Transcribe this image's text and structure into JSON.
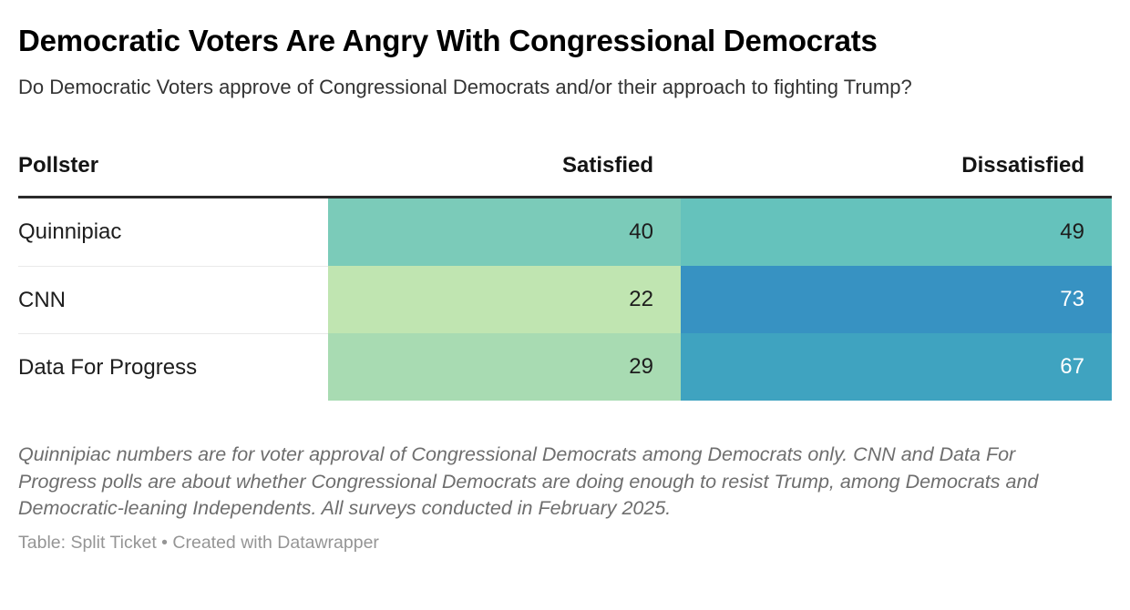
{
  "header": {
    "title": "Democratic Voters Are Angry With Congressional Democrats",
    "subtitle": "Do Democratic Voters approve of Congressional Democrats and/or their approach to fighting Trump?"
  },
  "table": {
    "columns": [
      "Pollster",
      "Satisfied",
      "Dissatisfied"
    ],
    "rows": [
      {
        "label": "Quinnipiac",
        "cells": [
          {
            "value": "40",
            "bg": "#7bcbb9",
            "fg": "#1d1d1d"
          },
          {
            "value": "49",
            "bg": "#65c2bc",
            "fg": "#1d1d1d"
          }
        ]
      },
      {
        "label": "CNN",
        "cells": [
          {
            "value": "22",
            "bg": "#c0e5b1",
            "fg": "#1d1d1d"
          },
          {
            "value": "73",
            "bg": "#3792c2",
            "fg": "#ffffff"
          }
        ]
      },
      {
        "label": "Data For Progress",
        "cells": [
          {
            "value": "29",
            "bg": "#a8dbb2",
            "fg": "#1d1d1d"
          },
          {
            "value": "67",
            "bg": "#3fa3c0",
            "fg": "#ffffff"
          }
        ]
      }
    ]
  },
  "footer": {
    "footnote": "Quinnipiac numbers are for voter approval of Congressional Democrats among Democrats only. CNN and Data For Progress polls are about whether Congressional Democrats are doing enough to resist Trump, among Democrats and Democratic-leaning Independents. All surveys conducted in February 2025.",
    "credit": "Table: Split Ticket • Created with Datawrapper"
  },
  "colors": {
    "header_rule": "#2b2b2b",
    "row_divider": "#e9e9e9",
    "title_text": "#000000",
    "subtitle_text": "#333333",
    "footnote_text": "#6e6e6e",
    "credit_text": "#959595"
  },
  "chart_data": {
    "type": "table",
    "title": "Democratic Voters Are Angry With Congressional Democrats",
    "subtitle": "Do Democratic Voters approve of Congressional Democrats and/or their approach to fighting Trump?",
    "columns": [
      "Pollster",
      "Satisfied",
      "Dissatisfied"
    ],
    "rows": [
      [
        "Quinnipiac",
        40,
        49
      ],
      [
        "CNN",
        22,
        73
      ],
      [
        "Data For Progress",
        29,
        67
      ]
    ],
    "cell_style": "heatmap (green = low, blue = high)",
    "notes": "Quinnipiac numbers are for voter approval of Congressional Democrats among Democrats only. CNN and Data For Progress polls are about whether Congressional Democrats are doing enough to resist Trump, among Democrats and Democratic-leaning Independents. All surveys conducted in February 2025.",
    "credit": "Table: Split Ticket • Created with Datawrapper"
  }
}
